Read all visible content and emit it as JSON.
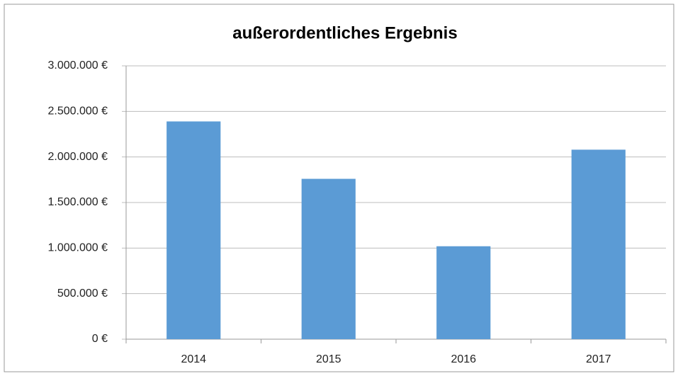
{
  "chart_data": {
    "type": "bar",
    "title": "außerordentliches Ergebnis",
    "categories": [
      "2014",
      "2015",
      "2016",
      "2017"
    ],
    "values": [
      2390000,
      1760000,
      1020000,
      2080000
    ],
    "color": "#5b9bd5",
    "ylim": [
      0,
      3000000
    ],
    "yticks": [
      {
        "value": 0,
        "label": "0 €"
      },
      {
        "value": 500000,
        "label": "500.000 €"
      },
      {
        "value": 1000000,
        "label": "1.000.000 €"
      },
      {
        "value": 1500000,
        "label": "1.500.000 €"
      },
      {
        "value": 2000000,
        "label": "2.000.000 €"
      },
      {
        "value": 2500000,
        "label": "2.500.000 €"
      },
      {
        "value": 3000000,
        "label": "3.000.000 €"
      }
    ],
    "grid": true
  }
}
